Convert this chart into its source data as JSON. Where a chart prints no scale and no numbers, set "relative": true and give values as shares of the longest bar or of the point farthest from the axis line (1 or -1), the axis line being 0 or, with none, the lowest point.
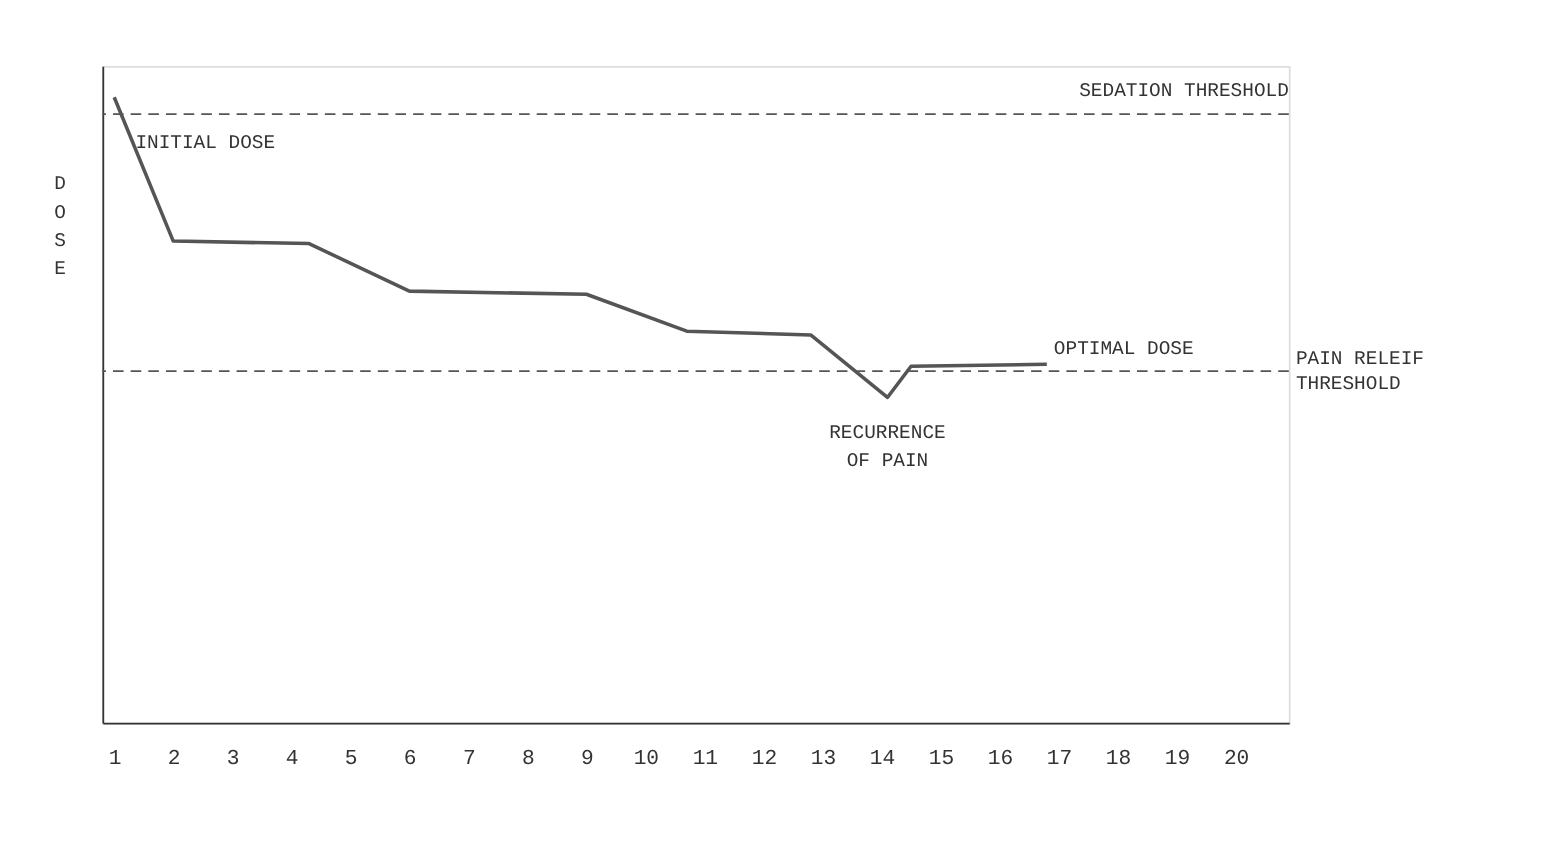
{
  "chart_data": {
    "type": "line",
    "relative": true,
    "ylabel": "DOSE",
    "x": [
      1,
      2,
      4.3,
      6,
      9,
      10.7,
      12.8,
      14.1,
      14.5,
      16.8
    ],
    "values": [
      1.0,
      0.77,
      0.766,
      0.69,
      0.685,
      0.626,
      0.62,
      0.52,
      0.57,
      0.573
    ],
    "color": "#555555",
    "marker": "none",
    "line_style": "solid",
    "grid": false,
    "legend": false,
    "xlim": [
      0.8,
      20.9
    ],
    "xticks": [
      1,
      2,
      3,
      4,
      5,
      6,
      7,
      8,
      9,
      10,
      11,
      12,
      13,
      14,
      15,
      16,
      17,
      18,
      19,
      20
    ],
    "ref_lines": [
      {
        "axis": "y",
        "value": 0.973,
        "label": "SEDATION THRESHOLD",
        "line_style": "dashed",
        "color": "#555555"
      },
      {
        "axis": "y",
        "value": 0.562,
        "label": "PAIN RELEIF\nTHRESHOLD",
        "line_style": "dashed",
        "color": "#555555"
      }
    ],
    "annotations": [
      {
        "text": "INITIAL DOSE",
        "x": 1,
        "y": 1.0
      },
      {
        "text": "OPTIMAL DOSE",
        "x": 16.8,
        "y": 0.573
      },
      {
        "text": "RECURRENCE\nOF PAIN",
        "x": 14.1,
        "y": 0.52
      }
    ]
  }
}
